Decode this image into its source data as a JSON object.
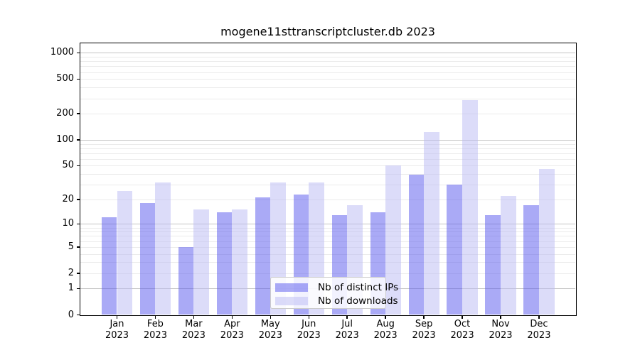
{
  "title": "mogene11sttranscriptcluster.db 2023",
  "chart_data": {
    "type": "bar",
    "title": "mogene11sttranscriptcluster.db 2023",
    "categories": [
      "Jan 2023",
      "Feb 2023",
      "Mar 2023",
      "Apr 2023",
      "May 2023",
      "Jun 2023",
      "Jul 2023",
      "Aug 2023",
      "Sep 2023",
      "Oct 2023",
      "Nov 2023",
      "Dec 2023"
    ],
    "series": [
      {
        "name": "Nb of distinct IPs",
        "color": "rgba(85,85,237,0.5)",
        "values": [
          12,
          18,
          5,
          14,
          21,
          23,
          13,
          14,
          39,
          30,
          13,
          17
        ]
      },
      {
        "name": "Nb of downloads",
        "color": "rgba(185,185,243,0.5)",
        "values": [
          25,
          32,
          15,
          15,
          32,
          32,
          17,
          50,
          122,
          288,
          22,
          46
        ]
      }
    ],
    "y_scale": "log10(1+x)",
    "y_ticks": [
      0,
      1,
      2,
      5,
      10,
      20,
      50,
      100,
      200,
      500,
      1000
    ],
    "ylim": [
      0,
      1180
    ],
    "xlabel": "",
    "ylabel": "",
    "grid": true,
    "legend_position": "lower center inside plot"
  }
}
